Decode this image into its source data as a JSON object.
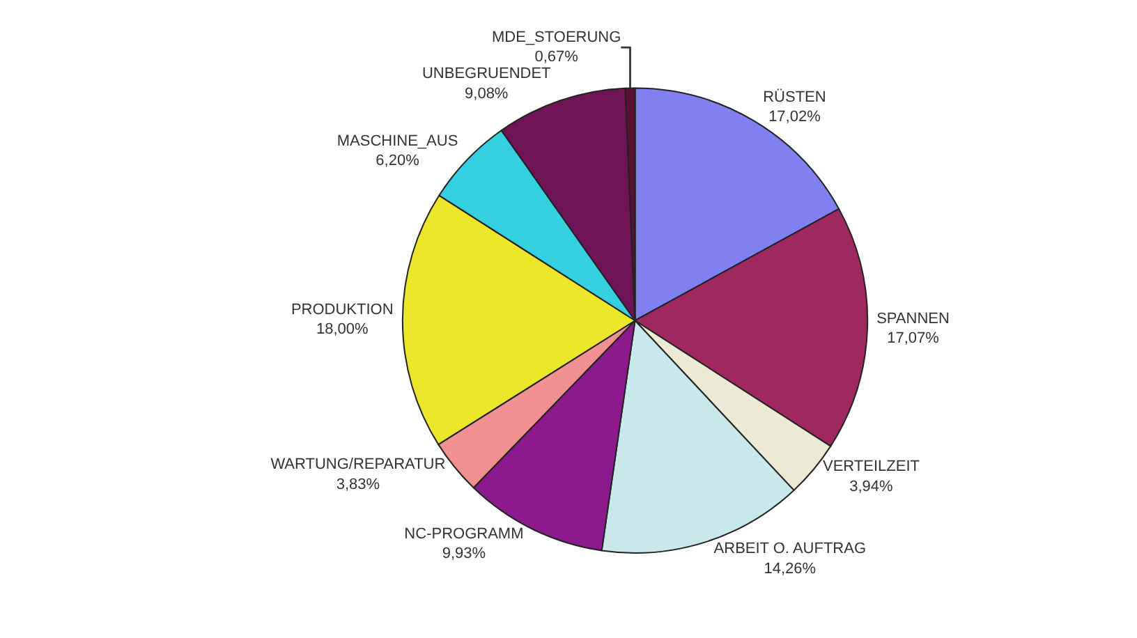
{
  "chart_data": {
    "type": "pie",
    "categories": [
      "RÜSTEN",
      "SPANNEN",
      "VERTEILZEIT",
      "ARBEIT O. AUFTRAG",
      "NC-PROGRAMM",
      "WARTUNG/REPARATUR",
      "PRODUKTION",
      "MASCHINE_AUS",
      "UNBEGRUENDET",
      "MDE_STOERUNG"
    ],
    "values": [
      17.02,
      17.07,
      3.94,
      14.26,
      9.93,
      3.83,
      18.0,
      6.2,
      9.08,
      0.67
    ],
    "colors": [
      "#8080f0",
      "#a02860",
      "#ecead4",
      "#c8e8ec",
      "#8c1a8c",
      "#f09090",
      "#ece62a",
      "#34d0e0",
      "#701458",
      "#5a1030"
    ],
    "value_labels": [
      "17,02%",
      "17,07%",
      "3,94%",
      "14,26%",
      "9,93%",
      "3,83%",
      "18,00%",
      "6,20%",
      "9,08%",
      "0,67%"
    ]
  }
}
